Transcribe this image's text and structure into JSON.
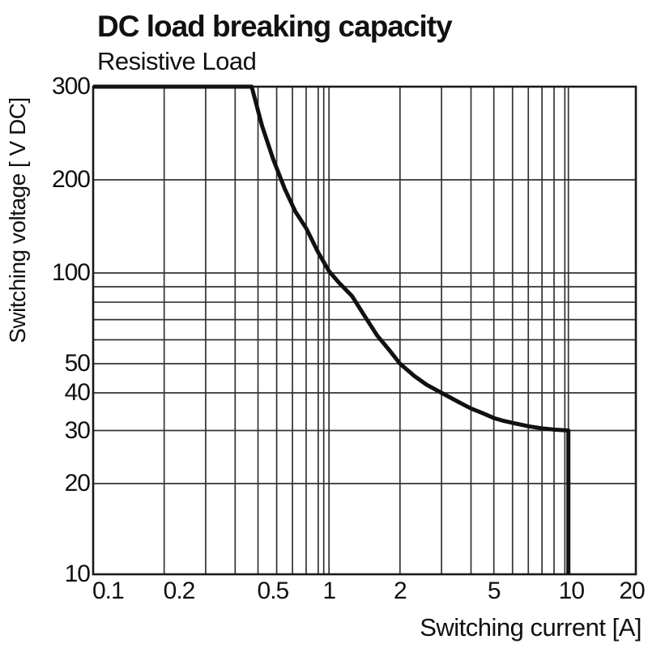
{
  "chart_data": {
    "type": "line",
    "title": "DC load breaking capacity",
    "subtitle": "Resistive Load",
    "xlabel": "Switching current [A]",
    "ylabel": "Switching voltage [ V DC]",
    "x_scale": "log",
    "y_scale": "log from 10 to 100, compressed linear from 100 to 300",
    "xlim": [
      0.1,
      20
    ],
    "ylim": [
      10,
      300
    ],
    "grid": true,
    "legend_position": "none",
    "x_ticks": {
      "values": [
        0.1,
        0.2,
        0.5,
        1,
        2,
        5,
        10,
        20
      ],
      "labels": [
        "0.1",
        "0.2",
        "0.5",
        "1",
        "2",
        "5",
        "10",
        "20"
      ],
      "dx": {
        "10": 8,
        "20": -5
      }
    },
    "y_ticks": {
      "values": [
        300,
        200,
        100,
        50,
        40,
        30,
        20,
        10
      ],
      "labels": [
        "300",
        "200",
        "100",
        "50",
        "40",
        "30",
        "20",
        "10"
      ]
    },
    "x_gridlines": [
      0.2,
      0.3,
      0.4,
      0.5,
      0.6,
      0.7,
      0.8,
      0.9,
      1,
      2,
      3,
      4,
      5,
      6,
      7,
      8,
      9,
      10
    ],
    "x_extra_lines": [
      0.95,
      10.35
    ],
    "y_gridlines": [
      20,
      30,
      40,
      50,
      60,
      70,
      80,
      90,
      100,
      200
    ],
    "series": [
      {
        "name": "Resistive Load",
        "color": "#111111",
        "points": [
          [
            0.1,
            300
          ],
          [
            0.47,
            300
          ],
          [
            0.52,
            258
          ],
          [
            0.58,
            222
          ],
          [
            0.65,
            190
          ],
          [
            0.72,
            166
          ],
          [
            0.8,
            148
          ],
          [
            0.9,
            122
          ],
          [
            1.0,
            102
          ],
          [
            1.1,
            93
          ],
          [
            1.25,
            84
          ],
          [
            1.4,
            73
          ],
          [
            1.6,
            62
          ],
          [
            1.8,
            55.5
          ],
          [
            2.0,
            50
          ],
          [
            2.3,
            45.5
          ],
          [
            2.6,
            42.5
          ],
          [
            3.0,
            40
          ],
          [
            3.5,
            37.5
          ],
          [
            4.0,
            35.5
          ],
          [
            4.5,
            34.2
          ],
          [
            5.0,
            33
          ],
          [
            5.5,
            32.3
          ],
          [
            6.0,
            31.8
          ],
          [
            7.0,
            31
          ],
          [
            8.0,
            30.5
          ],
          [
            9.0,
            30.2
          ],
          [
            10.35,
            30
          ],
          [
            10.35,
            10
          ]
        ]
      }
    ],
    "colors": {
      "background": "#ffffff",
      "grid": "#333333",
      "border": "#1a1a1a",
      "curve": "#111111",
      "text": "#111111"
    }
  }
}
